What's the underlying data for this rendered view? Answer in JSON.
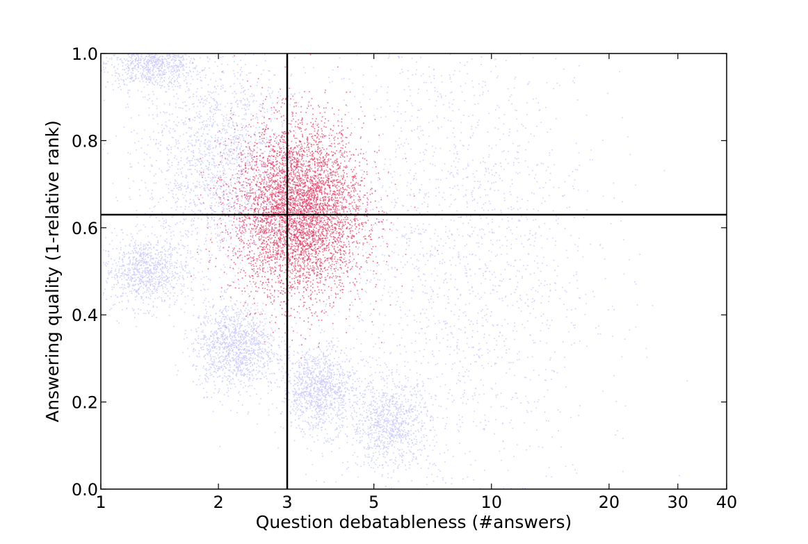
{
  "chart_data": {
    "type": "scatter",
    "title": "",
    "xlabel": "Question debatableness (#answers)",
    "ylabel": "Answering quality (1-relative rank)",
    "xscale": "log",
    "xlim": [
      1,
      40
    ],
    "ylim": [
      0.0,
      1.0
    ],
    "xticks": [
      1,
      2,
      3,
      5,
      10,
      20,
      30,
      40
    ],
    "xtick_labels": [
      "1",
      "2",
      "3",
      "5",
      "10",
      "20",
      "30",
      "40"
    ],
    "yticks": [
      0.0,
      0.2,
      0.4,
      0.6,
      0.8,
      1.0
    ],
    "ytick_labels": [
      "0.0",
      "0.2",
      "0.4",
      "0.6",
      "0.8",
      "1.0"
    ],
    "grid": false,
    "reference_lines": [
      {
        "orientation": "vertical",
        "x": 3
      },
      {
        "orientation": "horizontal",
        "y": 0.63
      }
    ],
    "series": [
      {
        "color": "#c8c8ff",
        "clusters": [
          {
            "x_center": 1.35,
            "y_center": 0.98,
            "x_spread": 0.35,
            "y_spread": 0.03,
            "weight": 0.1
          },
          {
            "x_center": 1.3,
            "y_center": 0.5,
            "x_spread": 0.3,
            "y_spread": 0.04,
            "weight": 0.1
          },
          {
            "x_center": 2.2,
            "y_center": 0.33,
            "x_spread": 0.5,
            "y_spread": 0.05,
            "weight": 0.14
          },
          {
            "x_center": 3.6,
            "y_center": 0.23,
            "x_spread": 0.7,
            "y_spread": 0.05,
            "weight": 0.12
          },
          {
            "x_center": 5.5,
            "y_center": 0.15,
            "x_spread": 1.2,
            "y_spread": 0.05,
            "weight": 0.1
          },
          {
            "x_center": 2.0,
            "y_center": 0.75,
            "x_spread": 0.9,
            "y_spread": 0.12,
            "weight": 0.2
          },
          {
            "x_center": 8.0,
            "y_center": 0.55,
            "x_spread": 8.0,
            "y_spread": 0.3,
            "weight": 0.24
          }
        ]
      },
      {
        "color": "#e8305a",
        "clusters": [
          {
            "x_center": 3.2,
            "y_center": 0.64,
            "x_spread": 1.2,
            "y_spread": 0.1,
            "weight": 1.0
          }
        ]
      }
    ]
  }
}
